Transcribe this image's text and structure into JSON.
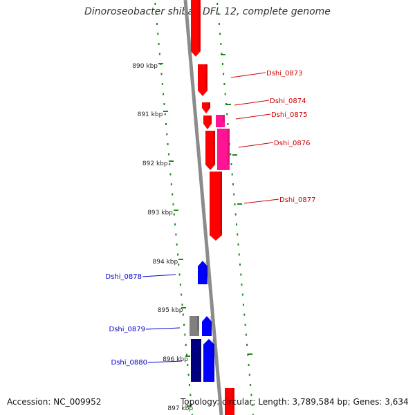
{
  "title": "Dinoroseobacter shibae DFL 12, complete genome",
  "accession_text": "Accession: NC_009952",
  "stats_text": "Topology: circular; Length: 3,789,584 bp; Genes: 3,634",
  "colors": {
    "forward_gene": "#ff0000",
    "forward_gene_alt": "#ff1493",
    "reverse_gene": "#0000ff",
    "reverse_gene_alt": "#000080",
    "reverse_other": "#808080",
    "backbone": "#8c8c8c",
    "gc_dots": "#1b8a1b",
    "forward_label": "#cc0000",
    "reverse_label": "#0000cc"
  },
  "ruler_labels": [
    "890 kbp",
    "891 kbp",
    "892 kbp",
    "893 kbp",
    "894 kbp",
    "895 kbp",
    "896 kbp",
    "897 kbp"
  ],
  "gene_labels": {
    "forward": [
      "Dshi_0873",
      "Dshi_0874",
      "Dshi_0875",
      "Dshi_0876",
      "Dshi_0877"
    ],
    "reverse": [
      "Dshi_0878",
      "Dshi_0879",
      "Dshi_0880"
    ]
  }
}
